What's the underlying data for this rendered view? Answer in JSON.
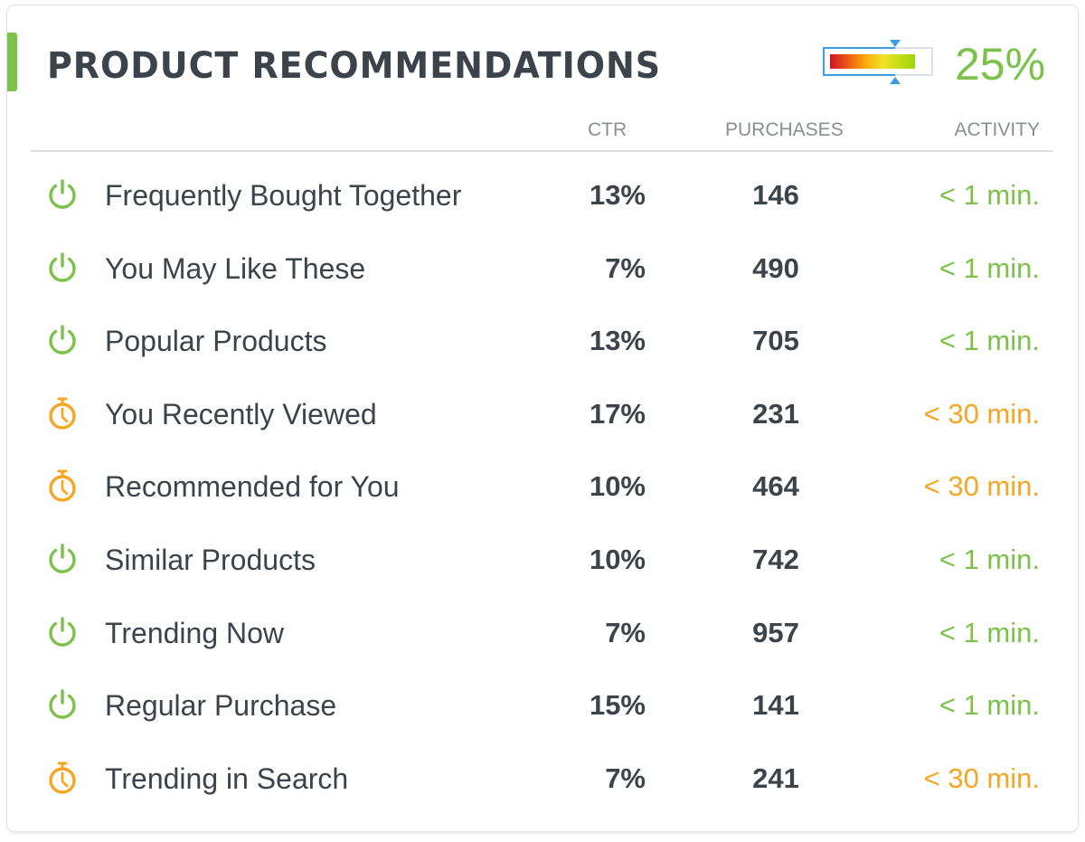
{
  "widget": {
    "title": "PRODUCT RECOMMENDATIONS",
    "meter": {
      "label": "25%",
      "fill_colors": [
        "#d0122a",
        "#fbb512",
        "#f4e126",
        "#9bd70a"
      ],
      "marker_color": "#3a9ee0"
    }
  },
  "columns": {
    "ctr": "CTR",
    "purchases": "PURCHASES",
    "activity": "ACTIVITY"
  },
  "colors": {
    "accent": "#7cc24a",
    "active": "#7cc24a",
    "pending": "#f6a623",
    "text": "#3d434b",
    "header": "#8a8d92"
  },
  "rows": [
    {
      "name": "Frequently Bought Together",
      "status_icon": "power-icon",
      "ctr": "13%",
      "purchases": "146",
      "activity": "< 1 min.",
      "activity_status": "green"
    },
    {
      "name": "You May Like These",
      "status_icon": "power-icon",
      "ctr": "7%",
      "purchases": "490",
      "activity": "< 1 min.",
      "activity_status": "green"
    },
    {
      "name": "Popular Products",
      "status_icon": "power-icon",
      "ctr": "13%",
      "purchases": "705",
      "activity": "< 1 min.",
      "activity_status": "green"
    },
    {
      "name": "You Recently Viewed",
      "status_icon": "stopwatch-icon",
      "ctr": "17%",
      "purchases": "231",
      "activity": "< 30 min.",
      "activity_status": "orange"
    },
    {
      "name": "Recommended for You",
      "status_icon": "stopwatch-icon",
      "ctr": "10%",
      "purchases": "464",
      "activity": "< 30 min.",
      "activity_status": "orange"
    },
    {
      "name": "Similar Products",
      "status_icon": "power-icon",
      "ctr": "10%",
      "purchases": "742",
      "activity": "< 1 min.",
      "activity_status": "green"
    },
    {
      "name": "Trending Now",
      "status_icon": "power-icon",
      "ctr": "7%",
      "purchases": "957",
      "activity": "< 1 min.",
      "activity_status": "green"
    },
    {
      "name": "Regular Purchase",
      "status_icon": "power-icon",
      "ctr": "15%",
      "purchases": "141",
      "activity": "< 1 min.",
      "activity_status": "green"
    },
    {
      "name": "Trending in Search",
      "status_icon": "stopwatch-icon",
      "ctr": "7%",
      "purchases": "241",
      "activity": "< 30 min.",
      "activity_status": "orange"
    }
  ]
}
